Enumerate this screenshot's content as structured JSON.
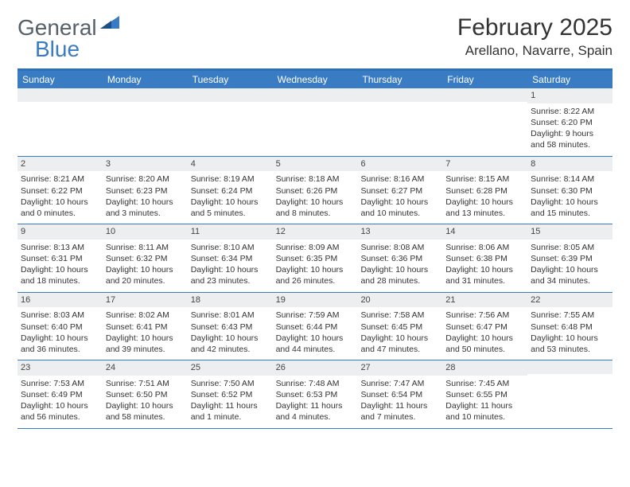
{
  "logo": {
    "general": "General",
    "blue": "Blue"
  },
  "title": "February 2025",
  "location": "Arellano, Navarre, Spain",
  "colors": {
    "brand_blue": "#3a7cc4",
    "border_blue": "#2f6fb3",
    "head_text": "#ffffff",
    "daynum_bg": "#eceeef",
    "text": "#333333",
    "logo_gray": "#55606a",
    "bg": "#ffffff"
  },
  "day_headers": [
    "Sunday",
    "Monday",
    "Tuesday",
    "Wednesday",
    "Thursday",
    "Friday",
    "Saturday"
  ],
  "weeks": [
    [
      null,
      null,
      null,
      null,
      null,
      null,
      {
        "n": "1",
        "sr": "Sunrise: 8:22 AM",
        "ss": "Sunset: 6:20 PM",
        "dl": "Daylight: 9 hours and 58 minutes."
      }
    ],
    [
      {
        "n": "2",
        "sr": "Sunrise: 8:21 AM",
        "ss": "Sunset: 6:22 PM",
        "dl": "Daylight: 10 hours and 0 minutes."
      },
      {
        "n": "3",
        "sr": "Sunrise: 8:20 AM",
        "ss": "Sunset: 6:23 PM",
        "dl": "Daylight: 10 hours and 3 minutes."
      },
      {
        "n": "4",
        "sr": "Sunrise: 8:19 AM",
        "ss": "Sunset: 6:24 PM",
        "dl": "Daylight: 10 hours and 5 minutes."
      },
      {
        "n": "5",
        "sr": "Sunrise: 8:18 AM",
        "ss": "Sunset: 6:26 PM",
        "dl": "Daylight: 10 hours and 8 minutes."
      },
      {
        "n": "6",
        "sr": "Sunrise: 8:16 AM",
        "ss": "Sunset: 6:27 PM",
        "dl": "Daylight: 10 hours and 10 minutes."
      },
      {
        "n": "7",
        "sr": "Sunrise: 8:15 AM",
        "ss": "Sunset: 6:28 PM",
        "dl": "Daylight: 10 hours and 13 minutes."
      },
      {
        "n": "8",
        "sr": "Sunrise: 8:14 AM",
        "ss": "Sunset: 6:30 PM",
        "dl": "Daylight: 10 hours and 15 minutes."
      }
    ],
    [
      {
        "n": "9",
        "sr": "Sunrise: 8:13 AM",
        "ss": "Sunset: 6:31 PM",
        "dl": "Daylight: 10 hours and 18 minutes."
      },
      {
        "n": "10",
        "sr": "Sunrise: 8:11 AM",
        "ss": "Sunset: 6:32 PM",
        "dl": "Daylight: 10 hours and 20 minutes."
      },
      {
        "n": "11",
        "sr": "Sunrise: 8:10 AM",
        "ss": "Sunset: 6:34 PM",
        "dl": "Daylight: 10 hours and 23 minutes."
      },
      {
        "n": "12",
        "sr": "Sunrise: 8:09 AM",
        "ss": "Sunset: 6:35 PM",
        "dl": "Daylight: 10 hours and 26 minutes."
      },
      {
        "n": "13",
        "sr": "Sunrise: 8:08 AM",
        "ss": "Sunset: 6:36 PM",
        "dl": "Daylight: 10 hours and 28 minutes."
      },
      {
        "n": "14",
        "sr": "Sunrise: 8:06 AM",
        "ss": "Sunset: 6:38 PM",
        "dl": "Daylight: 10 hours and 31 minutes."
      },
      {
        "n": "15",
        "sr": "Sunrise: 8:05 AM",
        "ss": "Sunset: 6:39 PM",
        "dl": "Daylight: 10 hours and 34 minutes."
      }
    ],
    [
      {
        "n": "16",
        "sr": "Sunrise: 8:03 AM",
        "ss": "Sunset: 6:40 PM",
        "dl": "Daylight: 10 hours and 36 minutes."
      },
      {
        "n": "17",
        "sr": "Sunrise: 8:02 AM",
        "ss": "Sunset: 6:41 PM",
        "dl": "Daylight: 10 hours and 39 minutes."
      },
      {
        "n": "18",
        "sr": "Sunrise: 8:01 AM",
        "ss": "Sunset: 6:43 PM",
        "dl": "Daylight: 10 hours and 42 minutes."
      },
      {
        "n": "19",
        "sr": "Sunrise: 7:59 AM",
        "ss": "Sunset: 6:44 PM",
        "dl": "Daylight: 10 hours and 44 minutes."
      },
      {
        "n": "20",
        "sr": "Sunrise: 7:58 AM",
        "ss": "Sunset: 6:45 PM",
        "dl": "Daylight: 10 hours and 47 minutes."
      },
      {
        "n": "21",
        "sr": "Sunrise: 7:56 AM",
        "ss": "Sunset: 6:47 PM",
        "dl": "Daylight: 10 hours and 50 minutes."
      },
      {
        "n": "22",
        "sr": "Sunrise: 7:55 AM",
        "ss": "Sunset: 6:48 PM",
        "dl": "Daylight: 10 hours and 53 minutes."
      }
    ],
    [
      {
        "n": "23",
        "sr": "Sunrise: 7:53 AM",
        "ss": "Sunset: 6:49 PM",
        "dl": "Daylight: 10 hours and 56 minutes."
      },
      {
        "n": "24",
        "sr": "Sunrise: 7:51 AM",
        "ss": "Sunset: 6:50 PM",
        "dl": "Daylight: 10 hours and 58 minutes."
      },
      {
        "n": "25",
        "sr": "Sunrise: 7:50 AM",
        "ss": "Sunset: 6:52 PM",
        "dl": "Daylight: 11 hours and 1 minute."
      },
      {
        "n": "26",
        "sr": "Sunrise: 7:48 AM",
        "ss": "Sunset: 6:53 PM",
        "dl": "Daylight: 11 hours and 4 minutes."
      },
      {
        "n": "27",
        "sr": "Sunrise: 7:47 AM",
        "ss": "Sunset: 6:54 PM",
        "dl": "Daylight: 11 hours and 7 minutes."
      },
      {
        "n": "28",
        "sr": "Sunrise: 7:45 AM",
        "ss": "Sunset: 6:55 PM",
        "dl": "Daylight: 11 hours and 10 minutes."
      },
      null
    ]
  ]
}
